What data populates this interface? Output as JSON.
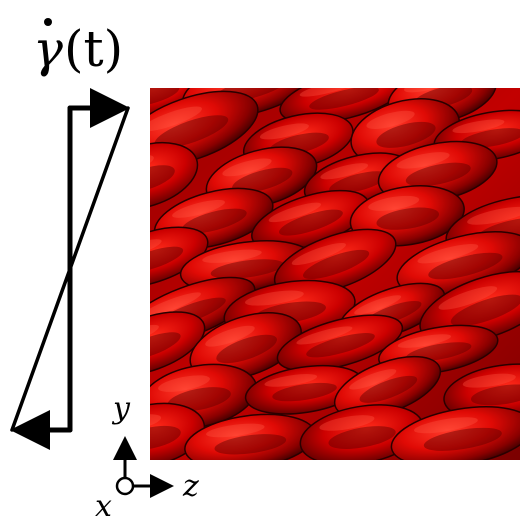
{
  "title": {
    "symbol": "γ",
    "argument": "(t)"
  },
  "axes": {
    "y": "y",
    "z": "z",
    "x": "x"
  },
  "colors": {
    "ink": "#000000",
    "cells_base": "#b40000",
    "cells_light": "#ff2020",
    "cells_dark": "#3a0000"
  }
}
